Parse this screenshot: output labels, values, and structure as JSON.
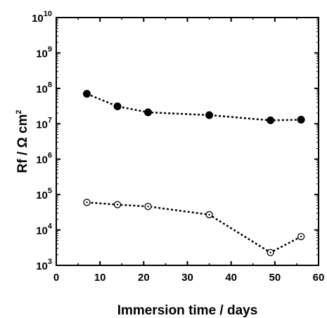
{
  "chart_data": {
    "type": "scatter",
    "title": "",
    "xlabel": "Immersion time / days",
    "ylabel": "Rf / Ω cm²",
    "ylabel_parts": {
      "main": "Rf / Ω cm",
      "sup": "2"
    },
    "xlim": [
      0,
      60
    ],
    "ylim": [
      1000,
      10000000000
    ],
    "yscale": "log",
    "x_ticks": [
      0,
      10,
      20,
      30,
      40,
      50,
      60
    ],
    "y_ticks": [
      1000,
      10000,
      100000,
      1000000,
      10000000,
      100000000,
      1000000000,
      10000000000
    ],
    "y_tick_labels": [
      {
        "base": "10",
        "exp": "3"
      },
      {
        "base": "10",
        "exp": "4"
      },
      {
        "base": "10",
        "exp": "5"
      },
      {
        "base": "10",
        "exp": "6"
      },
      {
        "base": "10",
        "exp": "7"
      },
      {
        "base": "10",
        "exp": "8"
      },
      {
        "base": "10",
        "exp": "9"
      },
      {
        "base": "10",
        "exp": "10"
      }
    ],
    "grid": false,
    "series": [
      {
        "marker": "filled-circle",
        "color": "#000000",
        "line_style": "dotted",
        "points": [
          {
            "x": 7,
            "y": 70000000
          },
          {
            "x": 14,
            "y": 31000000
          },
          {
            "x": 21,
            "y": 21000000
          },
          {
            "x": 35,
            "y": 17500000
          },
          {
            "x": 49,
            "y": 12500000
          },
          {
            "x": 56,
            "y": 13000000
          }
        ]
      },
      {
        "marker": "open-circle-dot",
        "color": "#000000",
        "line_style": "dotted",
        "points": [
          {
            "x": 7,
            "y": 60000
          },
          {
            "x": 14,
            "y": 52000
          },
          {
            "x": 21,
            "y": 46000
          },
          {
            "x": 35,
            "y": 27000
          },
          {
            "x": 49,
            "y": 2300
          },
          {
            "x": 56,
            "y": 6500
          }
        ]
      }
    ]
  }
}
